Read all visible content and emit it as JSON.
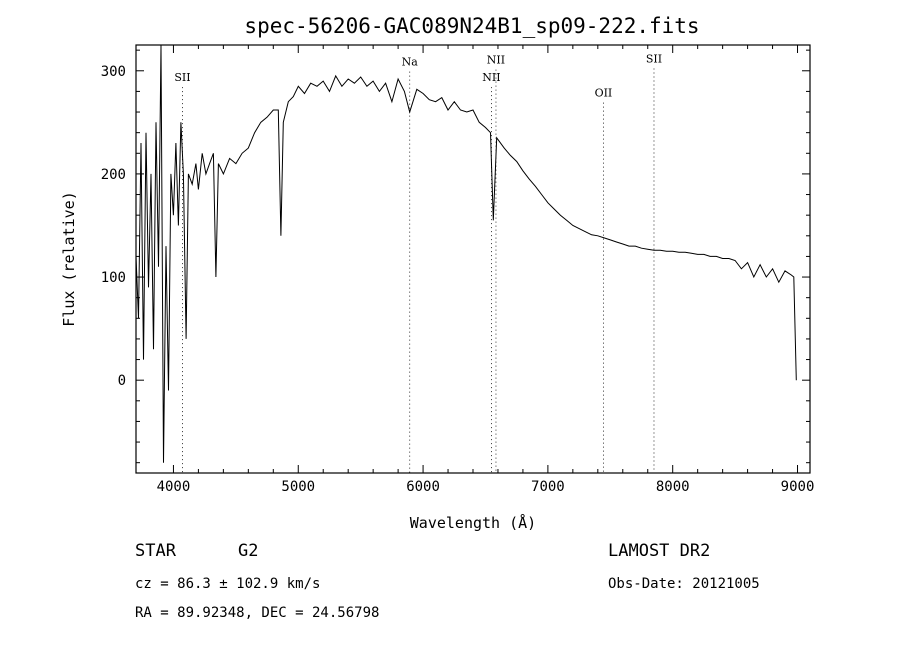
{
  "chart_data": {
    "type": "line",
    "title": "spec-56206-GAC089N24B1_sp09-222.fits",
    "xlabel": "Wavelength (Å)",
    "ylabel": "Flux (relative)",
    "xlim": [
      3700,
      9100
    ],
    "ylim": [
      -90,
      325
    ],
    "xticks": [
      4000,
      5000,
      6000,
      7000,
      8000,
      9000
    ],
    "yticks": [
      0,
      100,
      200,
      300
    ],
    "grid": false,
    "series": [
      {
        "values": [
          [
            3700,
            120
          ],
          [
            3720,
            60
          ],
          [
            3740,
            230
          ],
          [
            3760,
            20
          ],
          [
            3780,
            240
          ],
          [
            3800,
            90
          ],
          [
            3820,
            200
          ],
          [
            3840,
            30
          ],
          [
            3860,
            250
          ],
          [
            3880,
            110
          ],
          [
            3900,
            325
          ],
          [
            3920,
            -80
          ],
          [
            3940,
            130
          ],
          [
            3960,
            -10
          ],
          [
            3980,
            200
          ],
          [
            4000,
            160
          ],
          [
            4020,
            230
          ],
          [
            4040,
            150
          ],
          [
            4060,
            250
          ],
          [
            4080,
            200
          ],
          [
            4101,
            40
          ],
          [
            4120,
            200
          ],
          [
            4150,
            190
          ],
          [
            4180,
            210
          ],
          [
            4200,
            185
          ],
          [
            4230,
            220
          ],
          [
            4260,
            200
          ],
          [
            4290,
            210
          ],
          [
            4320,
            220
          ],
          [
            4340,
            100
          ],
          [
            4360,
            210
          ],
          [
            4400,
            200
          ],
          [
            4450,
            215
          ],
          [
            4500,
            210
          ],
          [
            4550,
            220
          ],
          [
            4600,
            225
          ],
          [
            4650,
            240
          ],
          [
            4700,
            250
          ],
          [
            4750,
            255
          ],
          [
            4800,
            262
          ],
          [
            4840,
            262
          ],
          [
            4861,
            140
          ],
          [
            4880,
            250
          ],
          [
            4920,
            270
          ],
          [
            4960,
            275
          ],
          [
            5000,
            285
          ],
          [
            5050,
            278
          ],
          [
            5100,
            288
          ],
          [
            5150,
            285
          ],
          [
            5200,
            290
          ],
          [
            5250,
            280
          ],
          [
            5300,
            295
          ],
          [
            5350,
            285
          ],
          [
            5400,
            292
          ],
          [
            5450,
            288
          ],
          [
            5500,
            294
          ],
          [
            5550,
            285
          ],
          [
            5600,
            290
          ],
          [
            5650,
            280
          ],
          [
            5700,
            288
          ],
          [
            5750,
            270
          ],
          [
            5800,
            292
          ],
          [
            5850,
            280
          ],
          [
            5893,
            260
          ],
          [
            5950,
            282
          ],
          [
            6000,
            278
          ],
          [
            6050,
            272
          ],
          [
            6100,
            270
          ],
          [
            6150,
            274
          ],
          [
            6200,
            262
          ],
          [
            6250,
            270
          ],
          [
            6300,
            262
          ],
          [
            6350,
            260
          ],
          [
            6400,
            262
          ],
          [
            6450,
            250
          ],
          [
            6500,
            245
          ],
          [
            6540,
            240
          ],
          [
            6563,
            155
          ],
          [
            6590,
            235
          ],
          [
            6650,
            225
          ],
          [
            6700,
            218
          ],
          [
            6750,
            212
          ],
          [
            6800,
            203
          ],
          [
            6850,
            195
          ],
          [
            6900,
            188
          ],
          [
            6950,
            180
          ],
          [
            7000,
            172
          ],
          [
            7050,
            166
          ],
          [
            7100,
            160
          ],
          [
            7150,
            155
          ],
          [
            7200,
            150
          ],
          [
            7250,
            147
          ],
          [
            7300,
            144
          ],
          [
            7350,
            141
          ],
          [
            7400,
            140
          ],
          [
            7450,
            138
          ],
          [
            7500,
            136
          ],
          [
            7550,
            134
          ],
          [
            7600,
            132
          ],
          [
            7650,
            130
          ],
          [
            7700,
            130
          ],
          [
            7750,
            128
          ],
          [
            7800,
            127
          ],
          [
            7850,
            126
          ],
          [
            7900,
            126
          ],
          [
            7950,
            125
          ],
          [
            8000,
            125
          ],
          [
            8050,
            124
          ],
          [
            8100,
            124
          ],
          [
            8150,
            123
          ],
          [
            8200,
            122
          ],
          [
            8250,
            122
          ],
          [
            8300,
            120
          ],
          [
            8350,
            120
          ],
          [
            8400,
            118
          ],
          [
            8450,
            118
          ],
          [
            8500,
            116
          ],
          [
            8550,
            108
          ],
          [
            8600,
            114
          ],
          [
            8650,
            100
          ],
          [
            8700,
            112
          ],
          [
            8750,
            100
          ],
          [
            8800,
            108
          ],
          [
            8850,
            95
          ],
          [
            8900,
            106
          ],
          [
            8950,
            102
          ],
          [
            8970,
            100
          ],
          [
            8990,
            0
          ]
        ]
      }
    ],
    "lines": [
      {
        "label": "SII",
        "x": 4072,
        "label_flux": 290
      },
      {
        "label": "Na",
        "x": 5893,
        "label_flux": 305
      },
      {
        "label": "NII",
        "x": 6548,
        "label_flux": 290
      },
      {
        "label": "NII",
        "x": 6584,
        "label_flux": 307
      },
      {
        "label": "OII",
        "x": 7445,
        "label_flux": 275
      },
      {
        "label": "SII",
        "x": 7850,
        "label_flux": 308
      }
    ]
  },
  "info": {
    "class": "STAR",
    "subclass": "G2",
    "survey": "LAMOST DR2",
    "redshift": "cz = 86.3 ± 102.9 km/s",
    "obs_date": "Obs-Date: 20121005",
    "coords": "RA =  89.92348, DEC =  24.56798"
  }
}
